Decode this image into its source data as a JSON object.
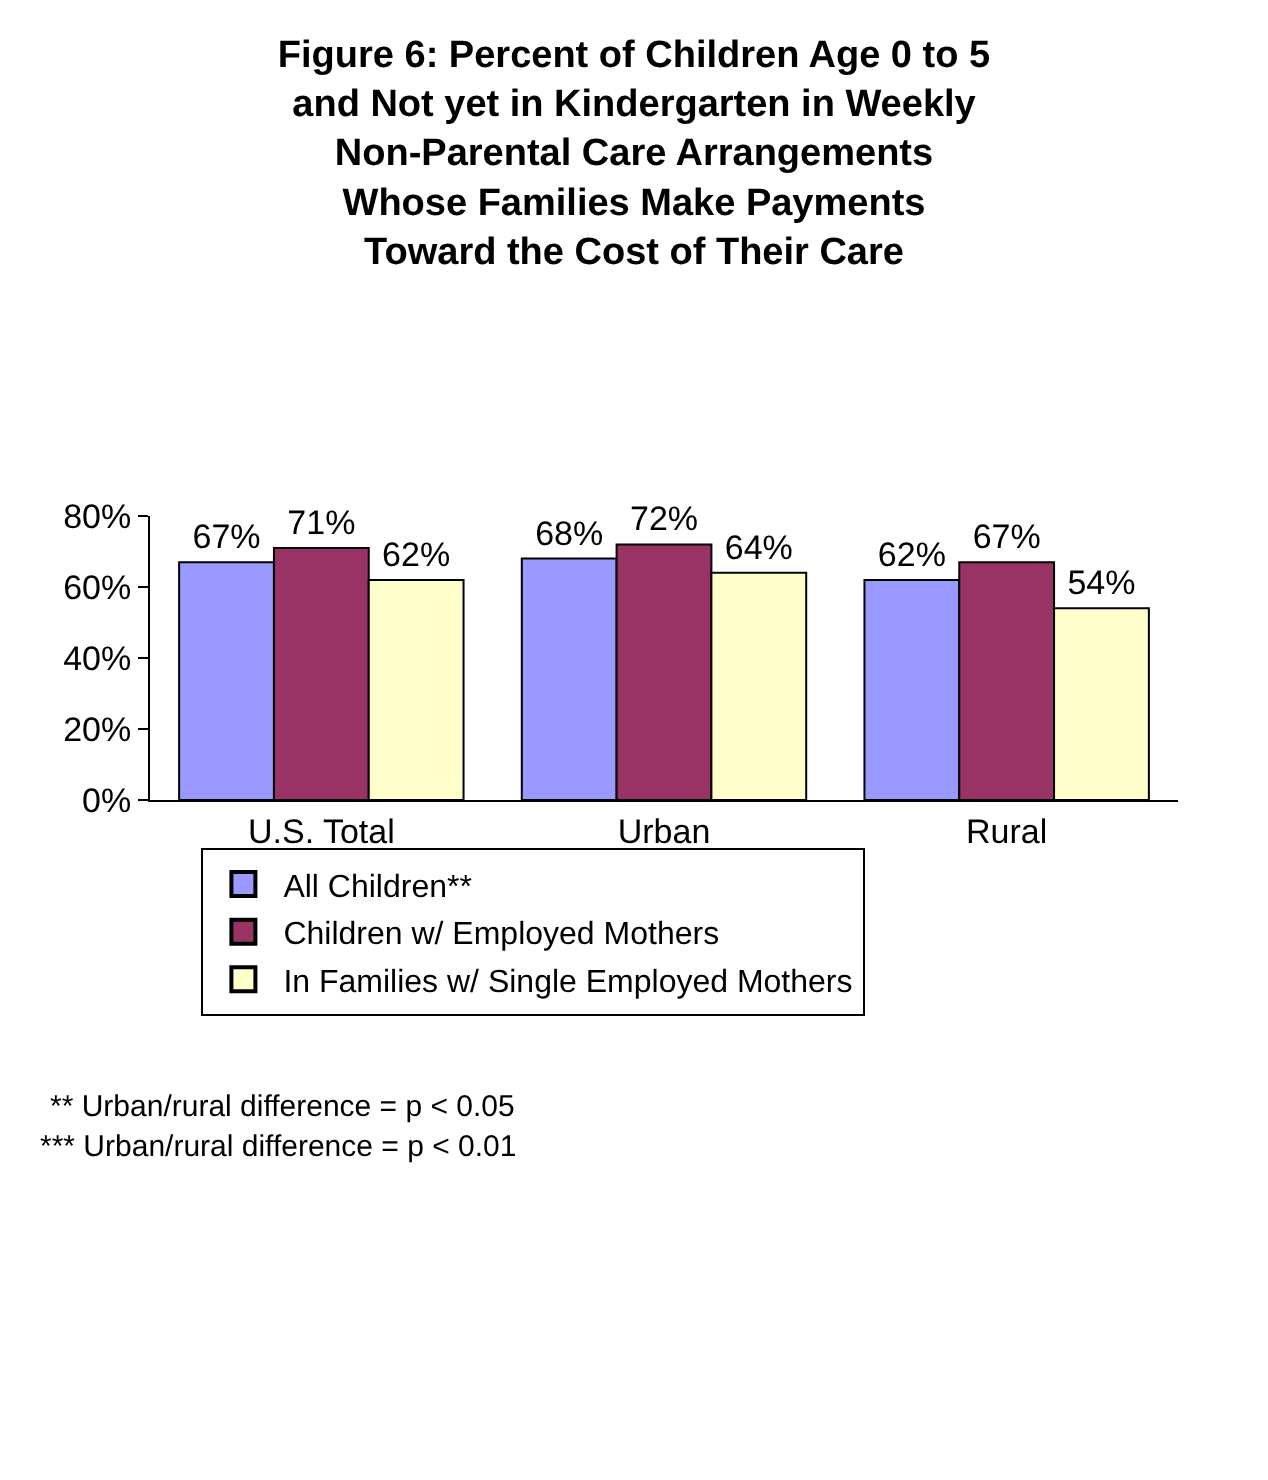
{
  "chart_data": {
    "type": "bar",
    "title": "Figure 6: Percent of Children Age 0 to 5\nand Not yet in Kindergarten in Weekly\nNon-Parental Care Arrangements\nWhose Families Make Payments\nToward the Cost of Their Care",
    "categories": [
      "U.S. Total",
      "Urban",
      "Rural"
    ],
    "series": [
      {
        "name": "All Children**",
        "color": "#9999ff",
        "values": [
          67,
          68,
          62
        ],
        "value_labels": [
          "67%",
          "68%",
          "62%"
        ]
      },
      {
        "name": "Children w/ Employed Mothers",
        "color": "#993366",
        "values": [
          71,
          72,
          67
        ],
        "value_labels": [
          "71%",
          "72%",
          "67%"
        ]
      },
      {
        "name": "In Families w/ Single Employed Mothers",
        "color": "#ffffcc",
        "values": [
          62,
          64,
          54
        ],
        "value_labels": [
          "62%",
          "64%",
          "54%"
        ]
      }
    ],
    "ylim": [
      0,
      80
    ],
    "yticks": [
      {
        "value": 0,
        "label": "0%"
      },
      {
        "value": 20,
        "label": "20%"
      },
      {
        "value": 40,
        "label": "40%"
      },
      {
        "value": 60,
        "label": "60%"
      },
      {
        "value": 80,
        "label": "80%"
      }
    ],
    "grid": false,
    "legend": "bottom",
    "annotations": [
      "** Urban/rural difference = p < 0.05",
      "*** Urban/rural difference = p < 0.01"
    ]
  }
}
